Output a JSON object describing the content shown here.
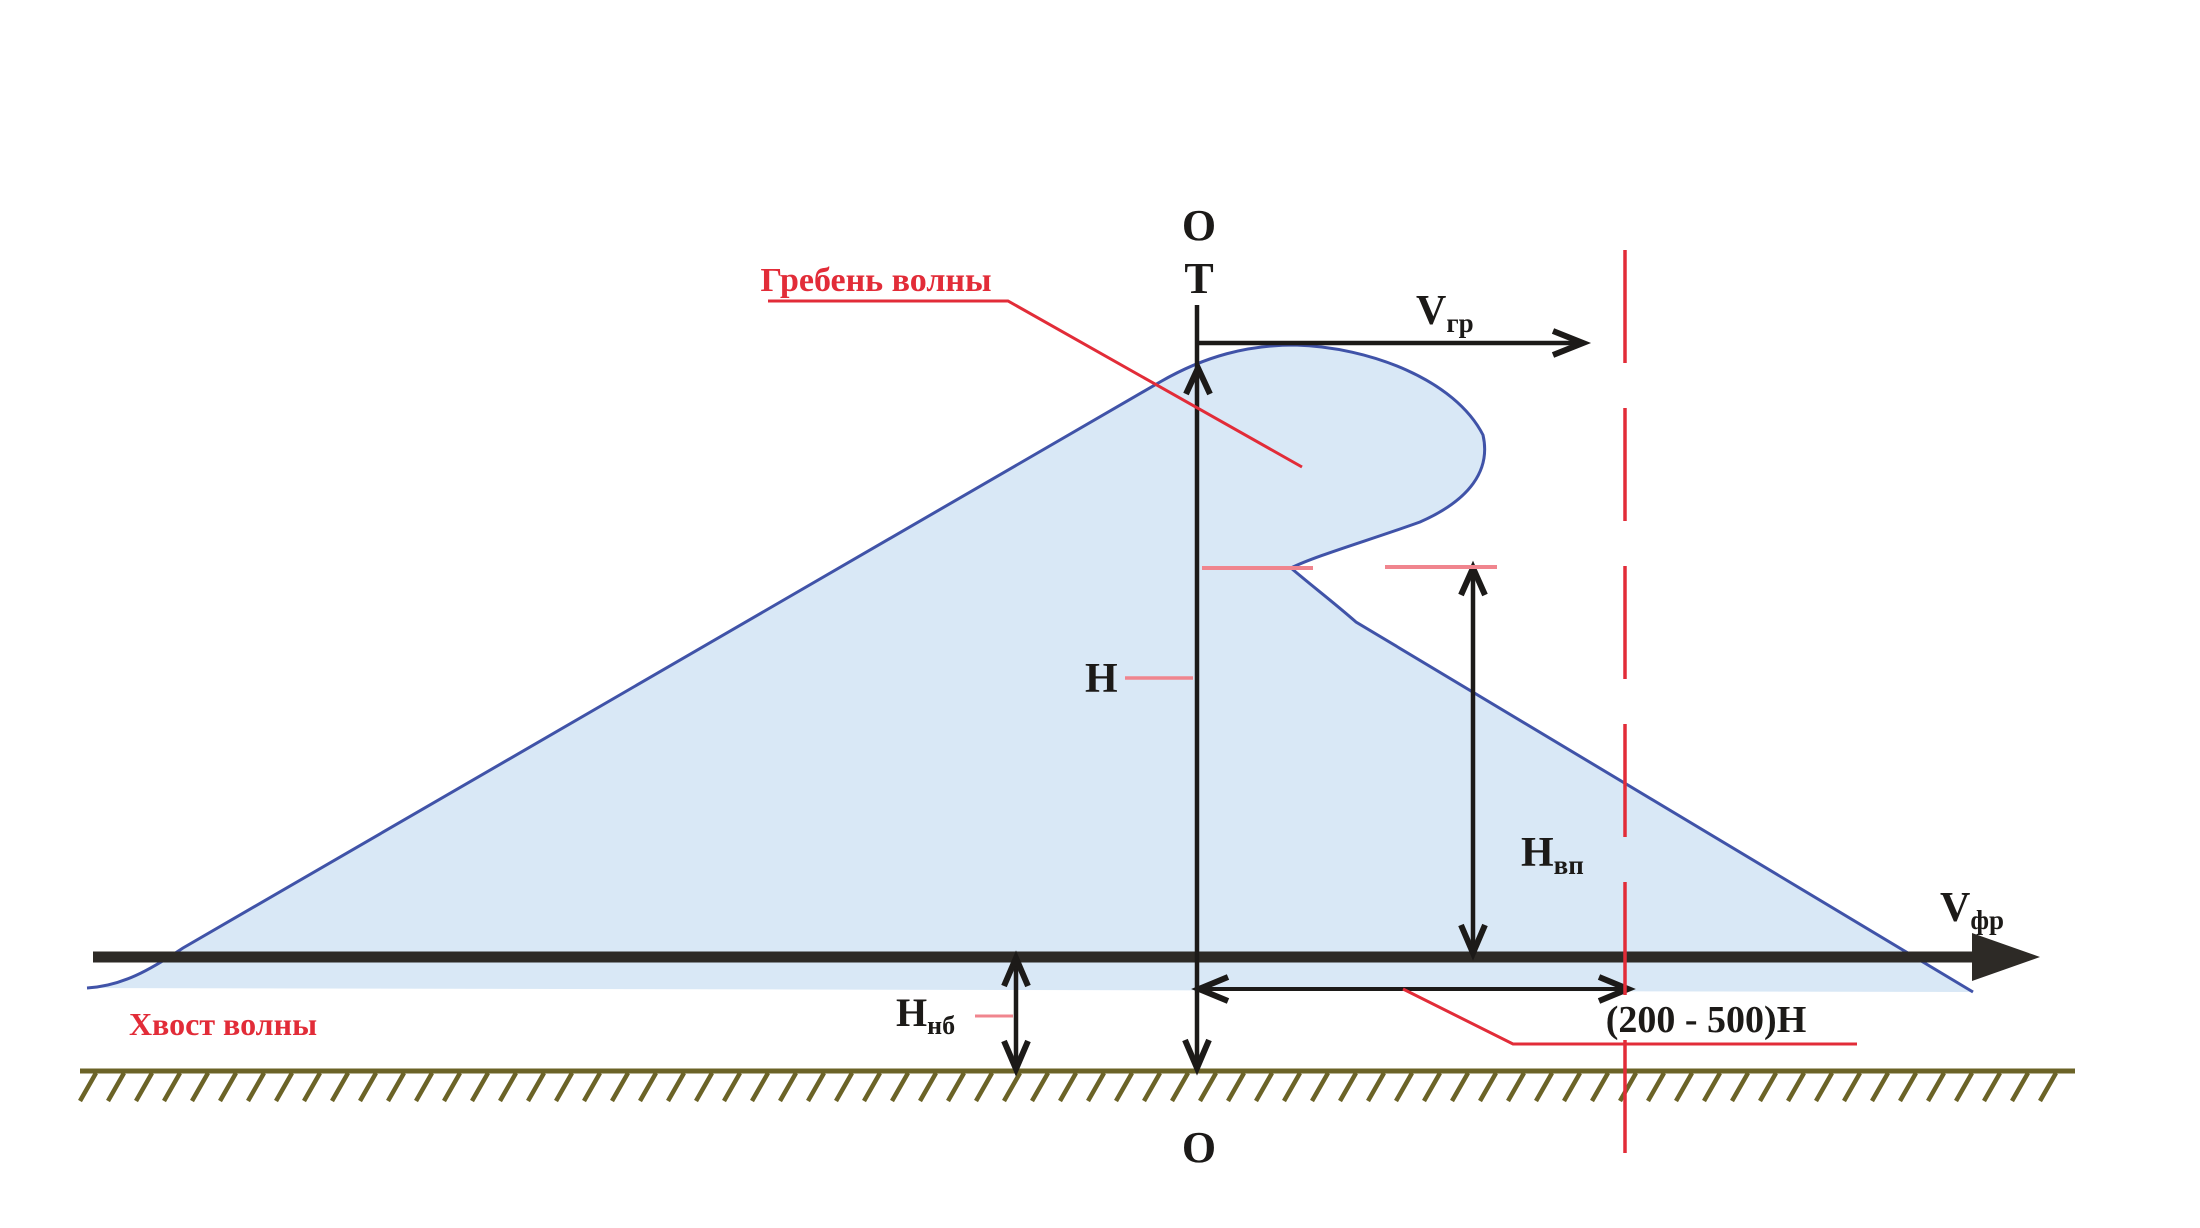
{
  "colors": {
    "wave_fill": "#d9e8f6",
    "wave_stroke": "#4053a8",
    "red": "#e22c38",
    "pale_red": "#f0858e",
    "ink": "#1c1a18",
    "water_line": "#2d2a26",
    "ground": "#6b6327"
  },
  "labels": {
    "axis_top_o": "О",
    "axis_top_t": "Т",
    "axis_bottom_o": "О",
    "crest_callout": "Гребень волны",
    "tail_callout": "Хвост волны",
    "crest_velocity_base": "V",
    "crest_velocity_sub": "гр",
    "front_velocity_base": "V",
    "front_velocity_sub": "фр",
    "height_main": "Н",
    "trough_height_base": "Н",
    "trough_height_sub": "вп",
    "tailwater_base": "Н",
    "tailwater_sub": "нб",
    "crest_distance": "(200 - 500)Н"
  }
}
